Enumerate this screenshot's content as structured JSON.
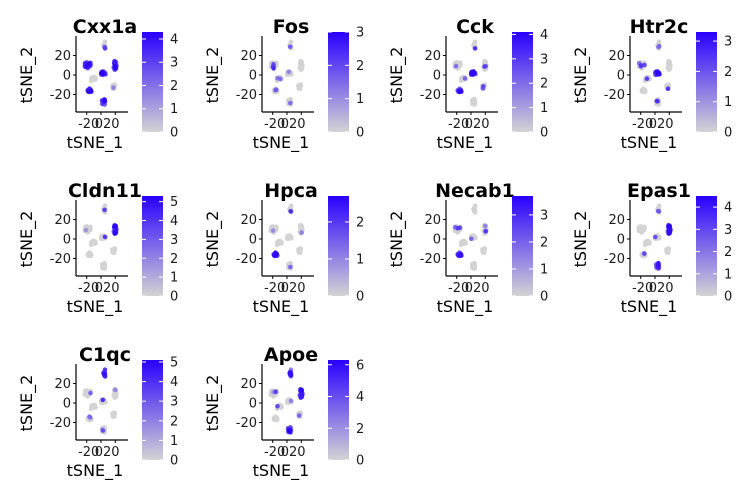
{
  "figure": {
    "x_axis_label": "tSNE_1",
    "y_axis_label": "tSNE_2",
    "x_ticks": [
      "-20",
      "0",
      "20"
    ],
    "y_ticks": [
      "20",
      "0",
      "-20"
    ],
    "color_low": "#d3d3d3",
    "color_high": "#2a00ff"
  },
  "chart_data": [
    {
      "type": "scatter",
      "title": "Cxx1a",
      "xlabel": "tSNE_1",
      "ylabel": "tSNE_2",
      "xlim": [
        -35,
        35
      ],
      "ylim": [
        -38,
        38
      ],
      "color_scale": {
        "min": 0,
        "max": 4.3,
        "ticks": [
          0,
          1,
          2,
          3,
          4
        ]
      },
      "highlight_clusters": [
        "left",
        "center",
        "right",
        "left-lower",
        "lower-center"
      ]
    },
    {
      "type": "scatter",
      "title": "Fos",
      "xlabel": "tSNE_1",
      "ylabel": "tSNE_2",
      "xlim": [
        -35,
        35
      ],
      "ylim": [
        -38,
        38
      ],
      "color_scale": {
        "min": 0,
        "max": 3.0,
        "ticks": [
          0,
          1,
          2,
          3
        ]
      },
      "highlight_clusters": []
    },
    {
      "type": "scatter",
      "title": "Cck",
      "xlabel": "tSNE_1",
      "ylabel": "tSNE_2",
      "xlim": [
        -35,
        35
      ],
      "ylim": [
        -38,
        38
      ],
      "color_scale": {
        "min": 0,
        "max": 4.1,
        "ticks": [
          0,
          1,
          2,
          3,
          4
        ]
      },
      "highlight_clusters": [
        "center",
        "left-lower"
      ]
    },
    {
      "type": "scatter",
      "title": "Htr2c",
      "xlabel": "tSNE_1",
      "ylabel": "tSNE_2",
      "xlim": [
        -35,
        35
      ],
      "ylim": [
        -38,
        38
      ],
      "color_scale": {
        "min": 0,
        "max": 3.3,
        "ticks": [
          0,
          1,
          2,
          3
        ]
      },
      "highlight_clusters": [
        "center"
      ]
    },
    {
      "type": "scatter",
      "title": "Cldn11",
      "xlabel": "tSNE_1",
      "ylabel": "tSNE_2",
      "xlim": [
        -35,
        35
      ],
      "ylim": [
        -38,
        38
      ],
      "color_scale": {
        "min": 0,
        "max": 5.3,
        "ticks": [
          0,
          1,
          2,
          3,
          4,
          5
        ]
      },
      "highlight_clusters": [
        "right"
      ]
    },
    {
      "type": "scatter",
      "title": "Hpca",
      "xlabel": "tSNE_1",
      "ylabel": "tSNE_2",
      "xlim": [
        -35,
        35
      ],
      "ylim": [
        -38,
        38
      ],
      "color_scale": {
        "min": 0,
        "max": 2.7,
        "ticks": [
          0,
          1,
          2
        ]
      },
      "highlight_clusters": [
        "left-lower"
      ]
    },
    {
      "type": "scatter",
      "title": "Necab1",
      "xlabel": "tSNE_1",
      "ylabel": "tSNE_2",
      "xlim": [
        -35,
        35
      ],
      "ylim": [
        -38,
        38
      ],
      "color_scale": {
        "min": 0,
        "max": 3.7,
        "ticks": [
          0,
          1,
          2,
          3
        ]
      },
      "highlight_clusters": [
        "left-lower"
      ]
    },
    {
      "type": "scatter",
      "title": "Epas1",
      "xlabel": "tSNE_1",
      "ylabel": "tSNE_2",
      "xlim": [
        -35,
        35
      ],
      "ylim": [
        -38,
        38
      ],
      "color_scale": {
        "min": 0,
        "max": 4.5,
        "ticks": [
          0,
          1,
          2,
          3,
          4
        ]
      },
      "highlight_clusters": [
        "right",
        "lower-center"
      ]
    },
    {
      "type": "scatter",
      "title": "C1qc",
      "xlabel": "tSNE_1",
      "ylabel": "tSNE_2",
      "xlim": [
        -35,
        35
      ],
      "ylim": [
        -38,
        38
      ],
      "color_scale": {
        "min": 0,
        "max": 5.1,
        "ticks": [
          0,
          1,
          2,
          3,
          4,
          5
        ]
      },
      "highlight_clusters": [
        "top"
      ]
    },
    {
      "type": "scatter",
      "title": "Apoe",
      "xlabel": "tSNE_1",
      "ylabel": "tSNE_2",
      "xlim": [
        -35,
        35
      ],
      "ylim": [
        -38,
        38
      ],
      "color_scale": {
        "min": 0,
        "max": 6.3,
        "ticks": [
          0,
          2,
          4,
          6
        ]
      },
      "highlight_clusters": [
        "top",
        "right",
        "lower-center"
      ]
    }
  ]
}
